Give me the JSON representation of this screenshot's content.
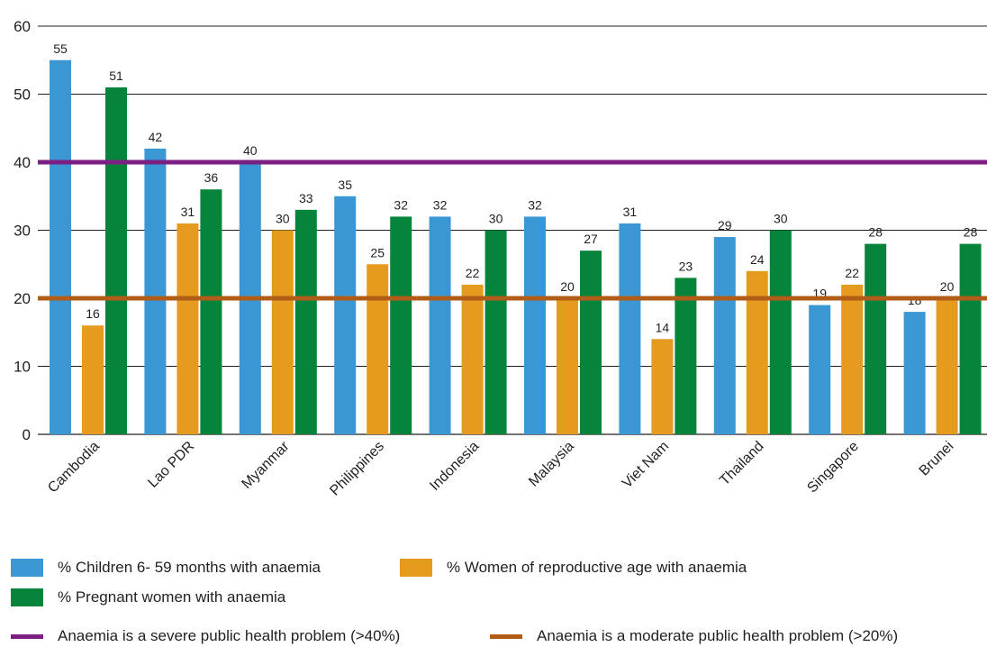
{
  "chart_data": {
    "type": "bar",
    "categories": [
      "Cambodia",
      "Lao PDR",
      "Myanmar",
      "Philippines",
      "Indonesia",
      "Malaysia",
      "Viet Nam",
      "Thailand",
      "Singapore",
      "Brunei"
    ],
    "series": [
      {
        "name": "% Children 6- 59 months with anaemia",
        "color": "#3a97d4",
        "values": [
          55,
          42,
          40,
          35,
          32,
          32,
          31,
          29,
          19,
          18
        ]
      },
      {
        "name": "% Women of reproductive age with anaemia",
        "color": "#e59b1d",
        "values": [
          16,
          31,
          30,
          25,
          22,
          20,
          14,
          24,
          22,
          20
        ]
      },
      {
        "name": "% Pregnant women with anaemia",
        "color": "#07843c",
        "values": [
          51,
          36,
          33,
          32,
          30,
          27,
          23,
          30,
          28,
          28
        ]
      }
    ],
    "reference_lines": [
      {
        "label": "Anaemia is a severe public health problem (>40%)",
        "value": 40,
        "color": "#7b1f83"
      },
      {
        "label": "Anaemia is a moderate public health problem (>20%)",
        "value": 20,
        "color": "#b15d18"
      }
    ],
    "ylim": [
      0,
      60
    ],
    "yticks": [
      0,
      10,
      20,
      30,
      40,
      50,
      60
    ],
    "grid": true,
    "legend_position": "bottom"
  }
}
